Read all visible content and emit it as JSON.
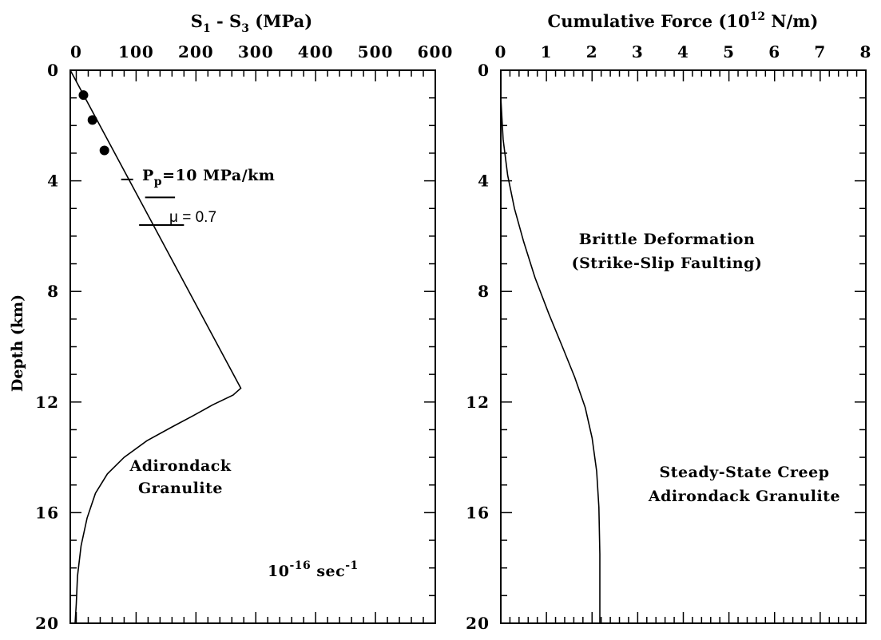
{
  "chart_data": [
    {
      "type": "line",
      "title": "S₁ - S₃ (MPa)",
      "title_main": "S",
      "title_sub1": "1",
      "title_mid": " - S",
      "title_sub2": "3",
      "title_unit": " (MPa)",
      "xlabel": "S1 - S3 (MPa)",
      "ylabel": "Depth (km)",
      "x_axis_position": "top",
      "y_inverted": true,
      "xlim": [
        -10,
        600
      ],
      "ylim": [
        0,
        20
      ],
      "x_ticks": [
        0,
        100,
        200,
        300,
        400,
        500,
        600
      ],
      "x_tick_labels": [
        "0",
        "100",
        "200",
        "300",
        "400",
        "500",
        "600"
      ],
      "y_ticks": [
        0,
        4,
        8,
        12,
        16,
        20
      ],
      "y_tick_labels": [
        "0",
        "4",
        "8",
        "12",
        "16",
        "20"
      ],
      "series": [
        {
          "name": "",
          "kind": "line",
          "x": [
            -10,
            275,
            262,
            228,
            195,
            160,
            118,
            80,
            52,
            32,
            18,
            8,
            2,
            0,
            -2
          ],
          "y": [
            0,
            11.5,
            11.75,
            12.1,
            12.5,
            12.9,
            13.4,
            14.0,
            14.6,
            15.3,
            16.2,
            17.2,
            18.3,
            19.3,
            20.0
          ]
        },
        {
          "name": "",
          "kind": "scatter",
          "x": [
            12,
            27,
            47
          ],
          "y": [
            0.9,
            1.8,
            2.9
          ]
        },
        {
          "name": "",
          "kind": "markers",
          "x_start": [
            75,
            115,
            105
          ],
          "x_end": [
            95,
            165,
            180
          ],
          "y": [
            3.95,
            4.6,
            5.6
          ]
        }
      ],
      "annotations": {
        "pp_main": "P",
        "pp_sub": "p",
        "pp_rest": "=10  MPa/km",
        "mu": "μ = 0.7",
        "label_line1": "Adirondack",
        "label_line2": "Granulite",
        "rate_base": "10",
        "rate_exp": "-16",
        "rate_unit": " sec",
        "rate_unit_exp": "-1"
      }
    },
    {
      "type": "line",
      "title": "Cumulative Force (10¹² N/m)",
      "title_main": "Cumulative  Force  (10",
      "title_exp": "12",
      "title_unit": "  N/m)",
      "xlabel": "Cumulative Force (10^12 N/m)",
      "x_axis_position": "top",
      "y_inverted": true,
      "xlim": [
        0,
        8
      ],
      "ylim": [
        0,
        20
      ],
      "x_ticks": [
        0,
        1,
        2,
        3,
        4,
        5,
        6,
        7,
        8
      ],
      "x_tick_labels": [
        "0",
        "1",
        "2",
        "3",
        "4",
        "5",
        "6",
        "7",
        "8"
      ],
      "y_ticks": [
        0,
        4,
        8,
        12,
        16,
        20
      ],
      "y_tick_labels": [
        "0",
        "4",
        "8",
        "12",
        "16",
        "20"
      ],
      "series": [
        {
          "name": "",
          "kind": "line",
          "x": [
            0,
            0.0,
            0.05,
            0.15,
            0.3,
            0.5,
            0.75,
            1.05,
            1.35,
            1.62,
            1.85,
            2.0,
            2.1,
            2.15,
            2.17,
            2.17
          ],
          "y": [
            0,
            1.0,
            2.5,
            3.8,
            5.0,
            6.2,
            7.5,
            8.8,
            10.0,
            11.1,
            12.2,
            13.3,
            14.5,
            15.8,
            17.5,
            20.0
          ]
        }
      ],
      "annotations": {
        "brittle_line1": "Brittle  Deformation",
        "brittle_line2": "(Strike-Slip   Faulting)",
        "creep_line1": "Steady-State  Creep",
        "creep_line2": "Adirondack  Granulite"
      }
    }
  ]
}
